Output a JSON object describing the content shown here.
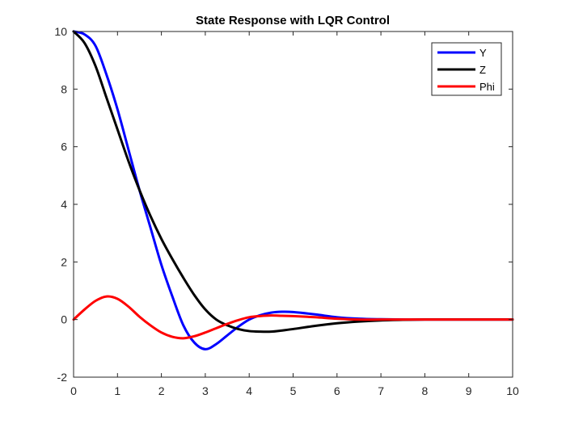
{
  "chart_data": {
    "type": "line",
    "title": "State Response with LQR Control",
    "xlabel": "",
    "ylabel": "",
    "xlim": [
      0,
      10
    ],
    "ylim": [
      -2,
      10
    ],
    "xticks": [
      "0",
      "1",
      "2",
      "3",
      "4",
      "5",
      "6",
      "7",
      "8",
      "9",
      "10"
    ],
    "yticks": [
      "-2",
      "0",
      "2",
      "4",
      "6",
      "8",
      "10"
    ],
    "grid": false,
    "legend_position": "top-right",
    "x": [
      0,
      0.25,
      0.5,
      0.75,
      1,
      1.25,
      1.5,
      1.75,
      2,
      2.25,
      2.5,
      2.75,
      3,
      3.25,
      3.5,
      3.75,
      4,
      4.25,
      4.5,
      4.75,
      5,
      5.5,
      6,
      6.5,
      7,
      7.5,
      8,
      8.5,
      9,
      9.5,
      10
    ],
    "series": [
      {
        "name": "Y",
        "color": "#0000ff",
        "values": [
          10,
          9.9,
          9.5,
          8.5,
          7.3,
          5.9,
          4.5,
          3.2,
          1.9,
          0.8,
          -0.2,
          -0.8,
          -1.03,
          -0.85,
          -0.55,
          -0.25,
          0.0,
          0.15,
          0.24,
          0.27,
          0.26,
          0.18,
          0.08,
          0.03,
          0.01,
          0.0,
          0.0,
          0.0,
          0.0,
          0.0,
          0.0
        ]
      },
      {
        "name": "Z",
        "color": "#000000",
        "values": [
          10,
          9.6,
          8.8,
          7.7,
          6.6,
          5.5,
          4.5,
          3.6,
          2.8,
          2.1,
          1.45,
          0.85,
          0.35,
          0.0,
          -0.2,
          -0.33,
          -0.4,
          -0.42,
          -0.42,
          -0.38,
          -0.33,
          -0.22,
          -0.13,
          -0.07,
          -0.03,
          -0.01,
          0.0,
          0.0,
          0.0,
          0.0,
          0.0
        ]
      },
      {
        "name": "Phi",
        "color": "#ff0000",
        "values": [
          0,
          0.35,
          0.65,
          0.8,
          0.72,
          0.45,
          0.1,
          -0.2,
          -0.45,
          -0.6,
          -0.65,
          -0.58,
          -0.45,
          -0.3,
          -0.15,
          -0.02,
          0.08,
          0.12,
          0.14,
          0.13,
          0.12,
          0.08,
          0.03,
          0.0,
          0.0,
          0.0,
          0.0,
          0.0,
          0.0,
          0.0,
          0.0
        ]
      }
    ]
  }
}
